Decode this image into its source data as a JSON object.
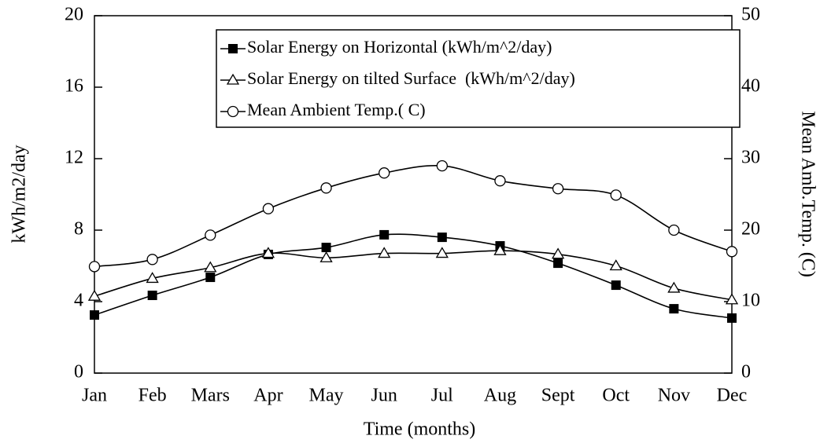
{
  "chart_data": {
    "type": "line",
    "x_label": "Time (months)",
    "y_label": "kWh/m2/day",
    "y2_label": "Mean Amb.Temp. (C)",
    "categories": [
      "Jan",
      "Feb",
      "Mars",
      "Apr",
      "May",
      "Jun",
      "Jul",
      "Aug",
      "Sept",
      "Oct",
      "Nov",
      "Dec"
    ],
    "series": [
      {
        "name": "Solar Energy on Horizontal (kWh/m^2/day)",
        "color": "#000000",
        "marker": "square-filled",
        "values": [
          3.25,
          4.35,
          5.36,
          6.64,
          7.03,
          7.74,
          7.6,
          7.12,
          6.15,
          4.92,
          3.6,
          3.08
        ]
      },
      {
        "name": "Solar Energy on tilted Surface  (kWh/m^2/day)",
        "color": "#000000",
        "marker": "triangle",
        "values": [
          4.3,
          5.3,
          5.9,
          6.7,
          6.45,
          6.7,
          6.7,
          6.85,
          6.65,
          6.0,
          4.75,
          4.1
        ]
      },
      {
        "name": "Mean Ambient Temp.( C)",
        "color": "#000000",
        "marker": "circle",
        "axis": "y2",
        "values": [
          14.9,
          15.9,
          19.3,
          23.0,
          25.9,
          28.0,
          29.0,
          26.9,
          25.8,
          24.9,
          20.0,
          17.0
        ]
      }
    ],
    "ylim": [
      0,
      20
    ],
    "yticks": [
      0,
      4,
      8,
      12,
      16,
      20
    ],
    "y2lim": [
      0,
      50
    ],
    "y2ticks": [
      0,
      10,
      20,
      30,
      40,
      50
    ],
    "legend": "upper right",
    "grid": false
  }
}
